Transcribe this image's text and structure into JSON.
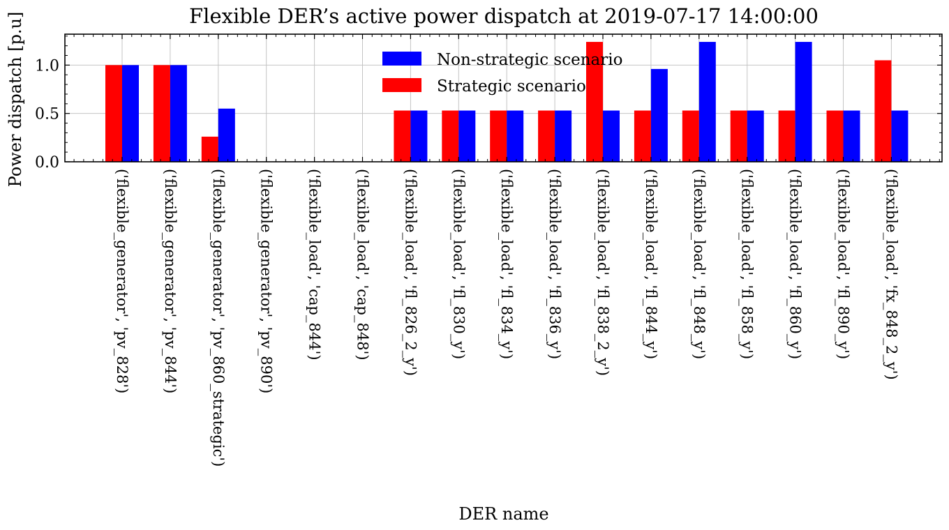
{
  "chart_data": {
    "type": "bar",
    "title": "Flexible DER’s active power dispatch at 2019-07-17 14:00:00",
    "xlabel": "DER name",
    "ylabel": "Power dispatch [p.u]",
    "ylim": [
      0,
      1.32
    ],
    "yticks": [
      "0.0",
      "0.5",
      "1.0"
    ],
    "grid": true,
    "legend_position": "top-center",
    "categories": [
      "('flexible_generator', 'pv_828')",
      "('flexible_generator', 'pv_844')",
      "('flexible_generator', 'pv_860_strategic')",
      "('flexible_generator', 'pv_890')",
      "('flexible_load', 'cap_844')",
      "('flexible_load', 'cap_848')",
      "('flexible_load', 'fl_826_2_y')",
      "('flexible_load', 'fl_830_y')",
      "('flexible_load', 'fl_834_y')",
      "('flexible_load', 'fl_836_y')",
      "('flexible_load', 'fl_838_2_y')",
      "('flexible_load', 'fl_844_y')",
      "('flexible_load', 'fl_848_y')",
      "('flexible_load', 'fl_858_y')",
      "('flexible_load', 'fl_860_y')",
      "('flexible_load', 'fl_890_y')",
      "('flexible_load', 'fx_848_2_y')"
    ],
    "series": [
      {
        "name": "Strategic scenario",
        "color": "#ff0000",
        "values": [
          1.0,
          1.0,
          0.26,
          0,
          0,
          0,
          0.53,
          0.53,
          0.53,
          0.53,
          1.24,
          0.53,
          0.53,
          0.53,
          0.53,
          0.53,
          1.05
        ]
      },
      {
        "name": "Non-strategic scenario",
        "color": "#0000ff",
        "values": [
          1.0,
          1.0,
          0.55,
          0,
          0,
          0,
          0.53,
          0.53,
          0.53,
          0.53,
          0.53,
          0.96,
          1.24,
          0.53,
          1.24,
          0.53,
          0.53
        ]
      }
    ],
    "legend_order": [
      "Non-strategic scenario",
      "Strategic scenario"
    ]
  }
}
